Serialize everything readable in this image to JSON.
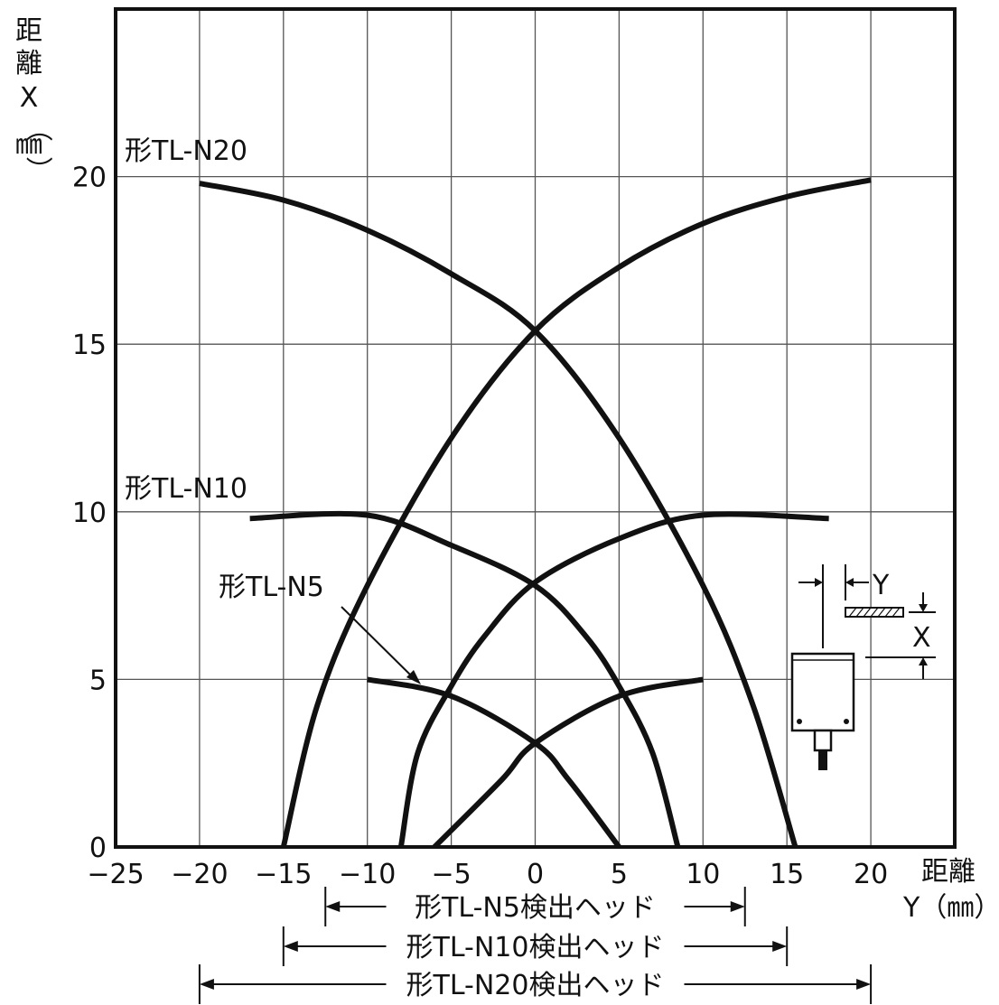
{
  "chart_data": {
    "type": "line",
    "ylabel": "距離X（㎜）",
    "xlabel": "距離Y（㎜）",
    "xlim": [
      -25,
      25
    ],
    "ylim": [
      0,
      25
    ],
    "grid": true,
    "xticks": [
      "−25",
      "−20",
      "−15",
      "−10",
      "−5",
      "0",
      "5",
      "10",
      "15",
      "20"
    ],
    "yticks": [
      "0",
      "5",
      "10",
      "15",
      "20"
    ],
    "series": [
      {
        "name": "形TL-N20",
        "curves": [
          [
            [
              -20,
              19.8
            ],
            [
              -15,
              19.3
            ],
            [
              -10,
              18.4
            ],
            [
              -5,
              17.1
            ],
            [
              0,
              15.4
            ],
            [
              5,
              12.2
            ],
            [
              10,
              7.8
            ],
            [
              13,
              4.2
            ],
            [
              15.5,
              0
            ]
          ],
          [
            [
              20,
              19.9
            ],
            [
              15,
              19.4
            ],
            [
              10,
              18.6
            ],
            [
              5,
              17.3
            ],
            [
              0,
              15.4
            ],
            [
              -5,
              12.2
            ],
            [
              -10,
              7.8
            ],
            [
              -13,
              4.2
            ],
            [
              -15,
              0
            ]
          ]
        ]
      },
      {
        "name": "形TL-N10",
        "curves": [
          [
            [
              -17,
              9.8
            ],
            [
              -10,
              9.9
            ],
            [
              -5,
              9.0
            ],
            [
              0,
              7.8
            ],
            [
              3,
              6.3
            ],
            [
              5,
              4.8
            ],
            [
              7,
              2.8
            ],
            [
              8.5,
              0
            ]
          ],
          [
            [
              17.5,
              9.8
            ],
            [
              10,
              9.9
            ],
            [
              5,
              9.2
            ],
            [
              0,
              7.9
            ],
            [
              -3,
              6.3
            ],
            [
              -5,
              4.8
            ],
            [
              -7,
              2.8
            ],
            [
              -8,
              0
            ]
          ]
        ]
      },
      {
        "name": "形TL-N5",
        "curves": [
          [
            [
              -10,
              5
            ],
            [
              -5,
              4.5
            ],
            [
              0,
              3.1
            ],
            [
              2,
              2.0
            ],
            [
              5,
              0
            ]
          ],
          [
            [
              10,
              5
            ],
            [
              5,
              4.5
            ],
            [
              0,
              3.1
            ],
            [
              -2,
              2.0
            ],
            [
              -6,
              0
            ]
          ]
        ]
      }
    ],
    "annotations": [
      "形TL-N5"
    ],
    "ranges": [
      {
        "label": "形TL-N5検出ヘッド",
        "from": -12.5,
        "to": 12.5
      },
      {
        "label": "形TL-N10検出ヘッド",
        "from": -15,
        "to": 15
      },
      {
        "label": "形TL-N20検出ヘッド",
        "from": -20,
        "to": 20
      }
    ],
    "inset": {
      "y_label": "Y",
      "x_label": "X"
    }
  }
}
